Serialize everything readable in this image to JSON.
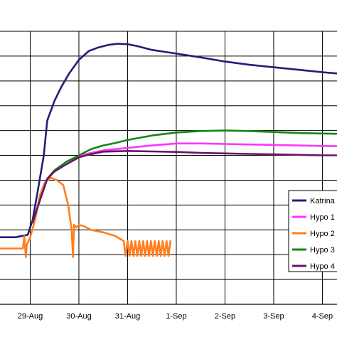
{
  "chart_data": {
    "type": "line",
    "xlabel": "",
    "ylabel": "",
    "x_unit": "days",
    "x_ticks": [
      {
        "x": 0,
        "label": "29-Aug"
      },
      {
        "x": 1,
        "label": "30-Aug"
      },
      {
        "x": 2,
        "label": "31-Aug"
      },
      {
        "x": 3,
        "label": "1-Sep"
      },
      {
        "x": 4,
        "label": "2-Sep"
      },
      {
        "x": 5,
        "label": "3-Sep"
      },
      {
        "x": 6,
        "label": "4-Sep"
      }
    ],
    "xlim": [
      -0.62,
      6.3
    ],
    "ylim": [
      0,
      11
    ],
    "grid": true,
    "legend_position": "right",
    "series": [
      {
        "name": "Katrina",
        "color": "#1f1f7a",
        "points": [
          [
            -0.62,
            2.7
          ],
          [
            -0.3,
            2.7
          ],
          [
            -0.05,
            2.8
          ],
          [
            0.05,
            3.4
          ],
          [
            0.15,
            4.5
          ],
          [
            0.28,
            6.0
          ],
          [
            0.35,
            7.4
          ],
          [
            0.5,
            8.2
          ],
          [
            0.65,
            8.8
          ],
          [
            0.8,
            9.3
          ],
          [
            1.0,
            9.85
          ],
          [
            1.2,
            10.2
          ],
          [
            1.4,
            10.35
          ],
          [
            1.6,
            10.45
          ],
          [
            1.8,
            10.5
          ],
          [
            2.0,
            10.48
          ],
          [
            2.2,
            10.4
          ],
          [
            2.5,
            10.25
          ],
          [
            3.0,
            10.1
          ],
          [
            3.5,
            9.95
          ],
          [
            4.0,
            9.78
          ],
          [
            4.5,
            9.65
          ],
          [
            5.0,
            9.55
          ],
          [
            5.5,
            9.45
          ],
          [
            6.0,
            9.35
          ],
          [
            6.3,
            9.3
          ]
        ]
      },
      {
        "name": "Hypo 1",
        "color": "#ff33ff",
        "points": [
          [
            0.05,
            3.3
          ],
          [
            0.2,
            4.2
          ],
          [
            0.35,
            5.05
          ],
          [
            0.5,
            5.4
          ],
          [
            0.75,
            5.75
          ],
          [
            1.0,
            5.98
          ],
          [
            1.25,
            6.1
          ],
          [
            1.5,
            6.2
          ],
          [
            2.0,
            6.3
          ],
          [
            2.5,
            6.4
          ],
          [
            3.0,
            6.48
          ],
          [
            3.5,
            6.48
          ],
          [
            4.0,
            6.46
          ],
          [
            4.5,
            6.44
          ],
          [
            5.0,
            6.42
          ],
          [
            5.5,
            6.4
          ],
          [
            6.0,
            6.38
          ],
          [
            6.3,
            6.37
          ]
        ]
      },
      {
        "name": "Hypo 2",
        "color": "#ff7f1e",
        "points": [
          [
            -0.62,
            2.25
          ],
          [
            -0.15,
            2.25
          ],
          [
            -0.12,
            2.75
          ],
          [
            -0.09,
            1.9
          ],
          [
            -0.07,
            2.4
          ],
          [
            0.0,
            2.7
          ],
          [
            0.1,
            3.4
          ],
          [
            0.2,
            4.4
          ],
          [
            0.3,
            4.9
          ],
          [
            0.42,
            5.1
          ],
          [
            0.55,
            5.0
          ],
          [
            0.68,
            4.8
          ],
          [
            0.78,
            4.0
          ],
          [
            0.85,
            3.0
          ],
          [
            0.88,
            1.9
          ],
          [
            0.9,
            3.2
          ],
          [
            0.95,
            3.1
          ],
          [
            1.0,
            3.2
          ],
          [
            1.1,
            3.15
          ],
          [
            1.25,
            3.0
          ],
          [
            1.5,
            2.9
          ],
          [
            1.75,
            2.75
          ],
          [
            1.92,
            2.55
          ]
        ]
      },
      {
        "name": "Hypo 3",
        "color": "#118811",
        "points": [
          [
            0.05,
            3.3
          ],
          [
            0.2,
            4.2
          ],
          [
            0.35,
            5.05
          ],
          [
            0.5,
            5.4
          ],
          [
            0.75,
            5.75
          ],
          [
            1.0,
            6.0
          ],
          [
            1.25,
            6.25
          ],
          [
            1.5,
            6.4
          ],
          [
            1.75,
            6.5
          ],
          [
            2.0,
            6.62
          ],
          [
            2.5,
            6.8
          ],
          [
            3.0,
            6.92
          ],
          [
            3.5,
            6.98
          ],
          [
            4.0,
            7.0
          ],
          [
            4.5,
            6.98
          ],
          [
            5.0,
            6.94
          ],
          [
            5.5,
            6.9
          ],
          [
            6.0,
            6.88
          ],
          [
            6.3,
            6.87
          ]
        ]
      },
      {
        "name": "Hypo 4",
        "color": "#6a136a",
        "points": [
          [
            0.05,
            3.3
          ],
          [
            0.2,
            4.2
          ],
          [
            0.35,
            5.05
          ],
          [
            0.5,
            5.35
          ],
          [
            0.75,
            5.65
          ],
          [
            1.0,
            5.92
          ],
          [
            1.25,
            6.05
          ],
          [
            1.5,
            6.15
          ],
          [
            2.0,
            6.18
          ],
          [
            2.5,
            6.16
          ],
          [
            3.0,
            6.14
          ],
          [
            3.5,
            6.1
          ],
          [
            4.0,
            6.08
          ],
          [
            4.5,
            6.06
          ],
          [
            5.0,
            6.04
          ],
          [
            5.5,
            6.02
          ],
          [
            6.0,
            6.0
          ],
          [
            6.3,
            6.0
          ]
        ]
      }
    ]
  }
}
